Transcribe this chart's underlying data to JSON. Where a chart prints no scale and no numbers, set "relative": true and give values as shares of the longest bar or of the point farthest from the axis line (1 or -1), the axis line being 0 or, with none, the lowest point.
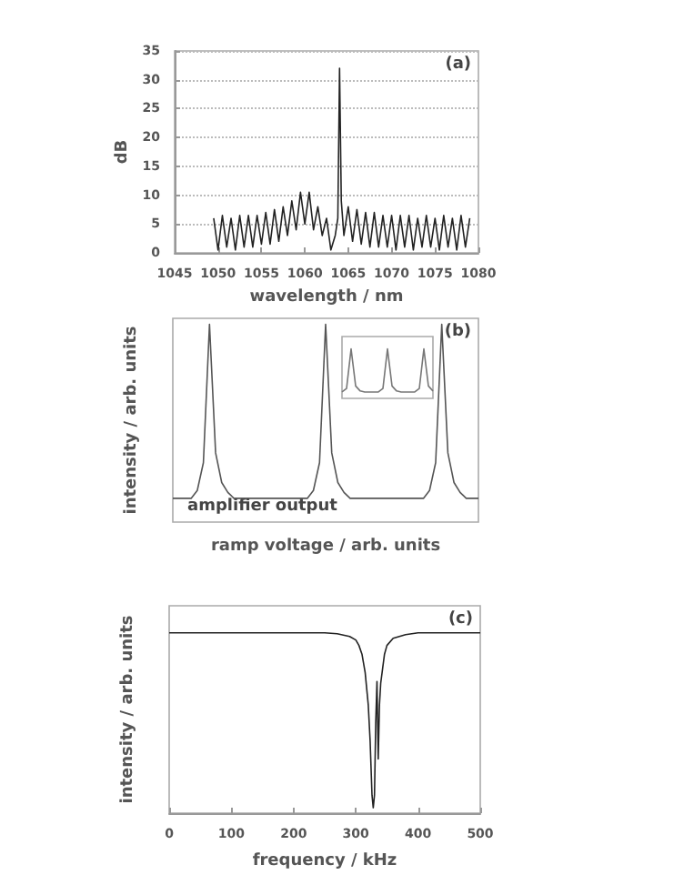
{
  "chart_data": [
    {
      "type": "line",
      "xlabel": "wavelength / nm",
      "ylabel": "dB",
      "annotations": [
        "(a)"
      ],
      "xlim": [
        1045,
        1080
      ],
      "xticks": [
        1045,
        1050,
        1055,
        1060,
        1065,
        1070,
        1075,
        1080
      ],
      "ylim": [
        0,
        35
      ],
      "yticks": [
        0,
        5,
        10,
        15,
        20,
        25,
        30,
        35
      ],
      "grid": "y",
      "color": "#222222",
      "x": [
        1049.5,
        1050,
        1050.5,
        1051,
        1051.5,
        1052,
        1052.5,
        1053,
        1053.5,
        1054,
        1054.5,
        1055,
        1055.5,
        1056,
        1056.5,
        1057,
        1057.5,
        1058,
        1058.5,
        1059,
        1059.5,
        1060,
        1060.5,
        1061,
        1061.5,
        1062,
        1062.5,
        1063,
        1063.5,
        1063.8,
        1064,
        1064.2,
        1064.5,
        1065,
        1065.5,
        1066,
        1066.5,
        1067,
        1067.5,
        1068,
        1068.5,
        1069,
        1069.5,
        1070,
        1070.5,
        1071,
        1071.5,
        1072,
        1072.5,
        1073,
        1073.5,
        1074,
        1074.5,
        1075,
        1075.5,
        1076,
        1076.5,
        1077,
        1077.5,
        1078,
        1078.5,
        1079
      ],
      "values": [
        6,
        0.5,
        6.5,
        1,
        6,
        0.5,
        6.5,
        1,
        6.5,
        1,
        6.5,
        1.5,
        7,
        1.5,
        7.5,
        2,
        8,
        3,
        9,
        4,
        10.5,
        5,
        10.5,
        4,
        8,
        3,
        6,
        0.5,
        3,
        6,
        32,
        9,
        3,
        8,
        2,
        7.5,
        1.5,
        7,
        1,
        7,
        1,
        6.5,
        1,
        6.5,
        0.5,
        6.5,
        1,
        6.5,
        0.5,
        6,
        1,
        6.5,
        1,
        6,
        0.5,
        6.5,
        1,
        6,
        0.5,
        6.5,
        1,
        6
      ]
    },
    {
      "type": "line",
      "relative": true,
      "xlabel": "ramp voltage / arb. units",
      "ylabel": "intensity / arb. units",
      "annotations": [
        "(b)",
        "amplifier output"
      ],
      "tick_labels": false,
      "color": "#555555",
      "categories": [
        null,
        null,
        null,
        null,
        null,
        null,
        null,
        null,
        null,
        null,
        null,
        null,
        null,
        null,
        null,
        null,
        null,
        null,
        null,
        null,
        null,
        null,
        null,
        null,
        null,
        null,
        null,
        null,
        null,
        null,
        null,
        null,
        null,
        null,
        null,
        null,
        null,
        null,
        null,
        null,
        null,
        null,
        null,
        null,
        null,
        null,
        null,
        null,
        null,
        null,
        null
      ],
      "values": [
        0.12,
        0.12,
        0.12,
        0.12,
        0.16,
        0.3,
        1,
        0.35,
        0.2,
        0.15,
        0.12,
        0.12,
        0.12,
        0.12,
        0.12,
        0.12,
        0.12,
        0.12,
        0.12,
        0.12,
        0.12,
        0.12,
        0.12,
        0.16,
        0.3,
        1,
        0.35,
        0.2,
        0.15,
        0.12,
        0.12,
        0.12,
        0.12,
        0.12,
        0.12,
        0.12,
        0.12,
        0.12,
        0.12,
        0.12,
        0.12,
        0.12,
        0.16,
        0.3,
        1,
        0.35,
        0.2,
        0.15,
        0.12,
        0.12,
        0.12
      ]
    },
    {
      "type": "line",
      "relative": true,
      "tick_labels": false,
      "color": "#777777",
      "categories": [
        null,
        null,
        null,
        null,
        null,
        null,
        null,
        null,
        null,
        null,
        null,
        null,
        null,
        null,
        null,
        null,
        null,
        null,
        null,
        null,
        null
      ],
      "values": [
        0.13,
        0.2,
        1,
        0.25,
        0.15,
        0.13,
        0.13,
        0.13,
        0.13,
        0.2,
        1,
        0.25,
        0.15,
        0.13,
        0.13,
        0.13,
        0.13,
        0.2,
        1,
        0.25,
        0.15
      ]
    },
    {
      "type": "line",
      "relative": true,
      "xlabel": "frequency / kHz",
      "ylabel": "intensity / arb. units",
      "annotations": [
        "(c)"
      ],
      "tick_labels": "x",
      "xlim": [
        0,
        500
      ],
      "xticks": [
        0,
        100,
        200,
        300,
        400,
        500
      ],
      "color": "#222222",
      "x": [
        0,
        50,
        100,
        150,
        200,
        250,
        270,
        290,
        300,
        305,
        310,
        315,
        320,
        323,
        326,
        328,
        330,
        332,
        334,
        336,
        338,
        340,
        343,
        346,
        350,
        360,
        380,
        400,
        450,
        500
      ],
      "values": [
        1,
        1,
        1,
        1,
        1,
        1,
        0.995,
        0.98,
        0.96,
        0.93,
        0.88,
        0.78,
        0.6,
        0.4,
        0.1,
        0.03,
        0.1,
        0.5,
        0.73,
        0.3,
        0.6,
        0.72,
        0.8,
        0.88,
        0.93,
        0.97,
        0.99,
        1,
        1,
        1
      ]
    }
  ]
}
